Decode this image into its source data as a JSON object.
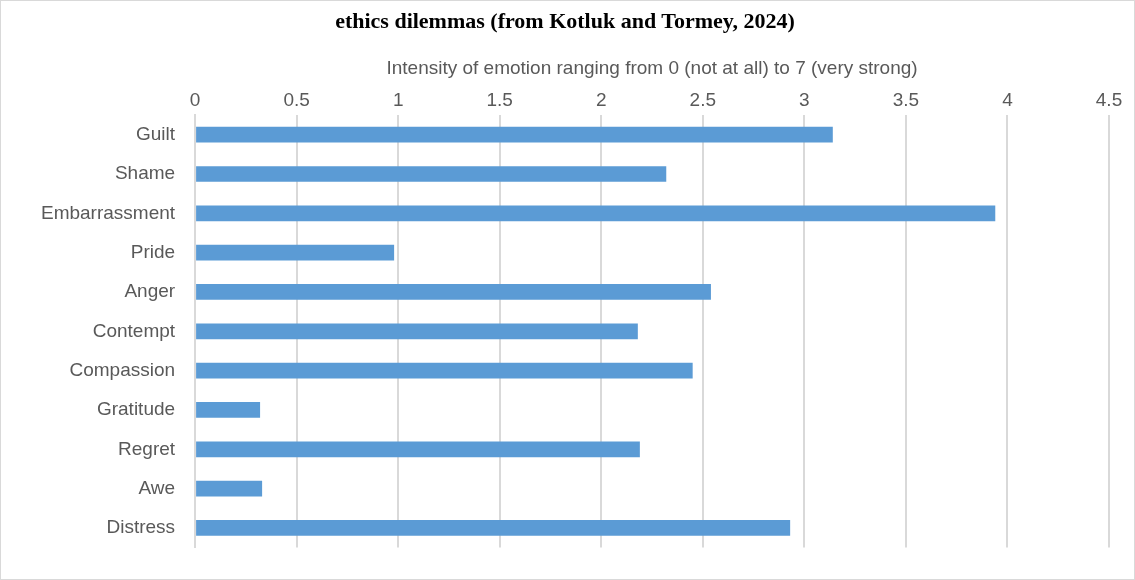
{
  "chart_data": {
    "type": "bar",
    "orientation": "horizontal",
    "title": "ethics dilemmas (from Kotluk and Tormey, 2024)",
    "xlabel": "Intensity of emotion ranging from 0 (not at all) to 7 (very strong)",
    "categories": [
      "Guilt",
      "Shame",
      "Embarrassment",
      "Pride",
      "Anger",
      "Contempt",
      "Compassion",
      "Gratitude",
      "Regret",
      "Awe",
      "Distress"
    ],
    "values": [
      3.14,
      2.32,
      3.94,
      0.98,
      2.54,
      2.18,
      2.45,
      0.32,
      2.19,
      0.33,
      2.93
    ],
    "color": "#5b9bd5",
    "xlim": [
      0,
      4.5
    ],
    "xticks": [
      0,
      0.5,
      1,
      1.5,
      2,
      2.5,
      3,
      3.5,
      4,
      4.5
    ],
    "grid": "x",
    "legend": false
  }
}
